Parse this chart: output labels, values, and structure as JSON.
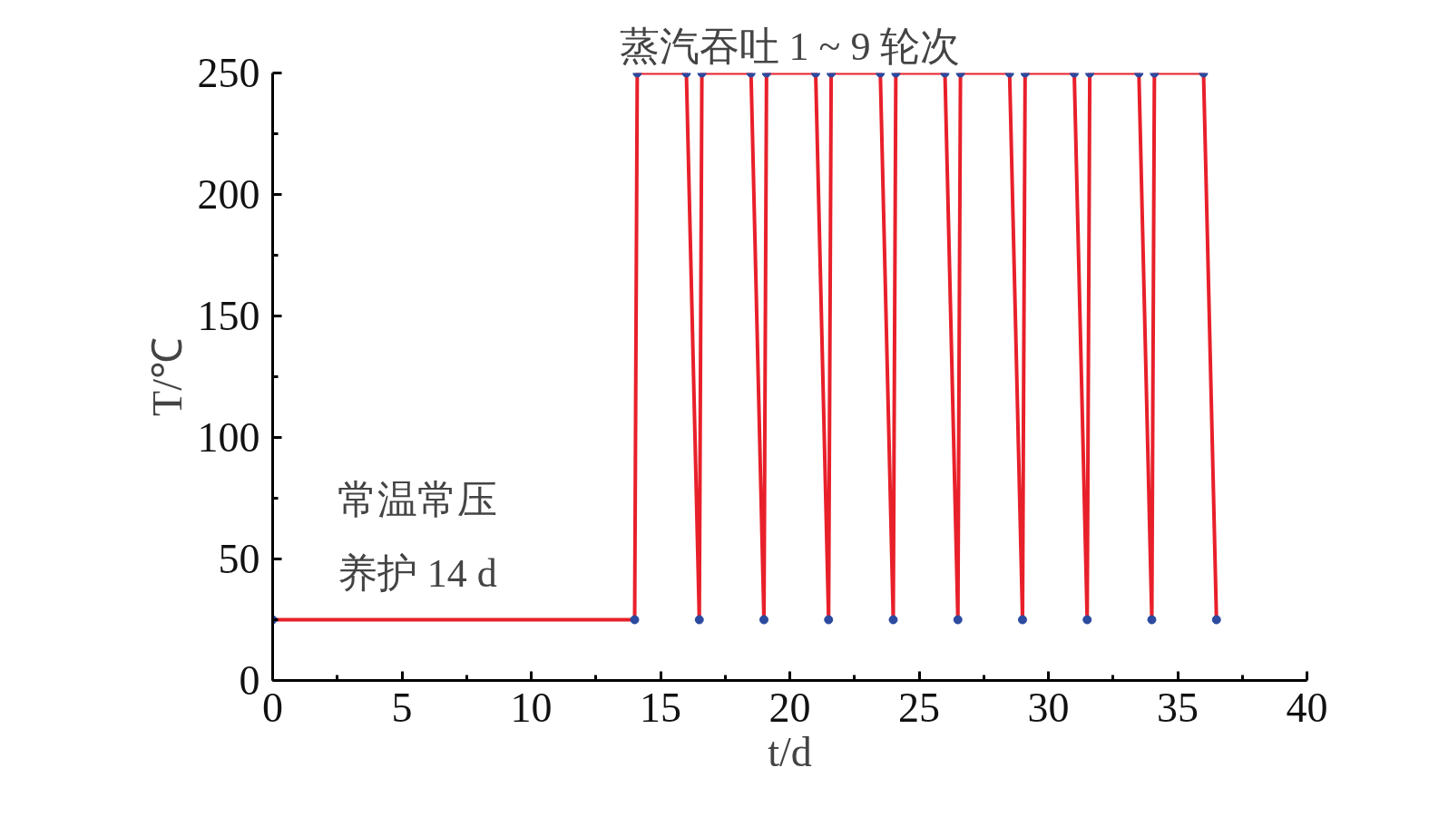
{
  "chart_data": {
    "type": "line",
    "xlabel": "t/d",
    "ylabel": "T/℃",
    "annotations": [
      "常温常压",
      "养护 14 d",
      "蒸汽吞吐 1 ~ 9 轮次"
    ],
    "x": [
      0,
      14,
      14.1,
      16,
      16.5,
      16.6,
      18.5,
      19,
      19.1,
      21,
      21.5,
      21.6,
      23.5,
      24,
      24.1,
      26,
      26.5,
      26.6,
      28.5,
      29,
      29.1,
      31,
      31.5,
      31.6,
      33.5,
      34,
      34.1,
      36,
      36.5
    ],
    "series": [
      {
        "color": "#e8202a",
        "values": [
          25,
          25,
          250,
          250,
          25,
          250,
          250,
          25,
          250,
          250,
          25,
          250,
          250,
          25,
          250,
          250,
          25,
          250,
          250,
          25,
          250,
          250,
          25,
          250,
          250,
          25,
          250,
          250,
          25
        ]
      }
    ],
    "marker": "circle",
    "line_style": "solid",
    "xlim": [
      0,
      40
    ],
    "xticks": [
      0,
      5,
      10,
      15,
      20,
      25,
      30,
      35,
      40
    ],
    "ylim": [
      0,
      250
    ],
    "yticks": [
      0,
      50,
      100,
      150,
      200,
      250
    ],
    "grid": false
  }
}
